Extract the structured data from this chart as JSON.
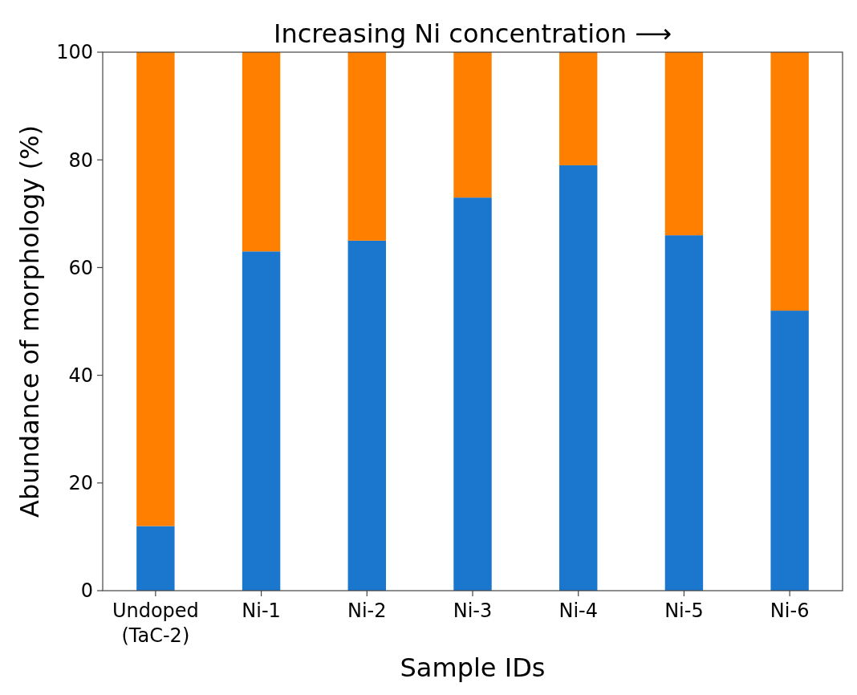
{
  "chart_data": {
    "type": "bar",
    "title": "Increasing Ni concentration ⟶",
    "xlabel": "Sample IDs",
    "ylabel": "Abundance of morphology (%)",
    "categories": [
      "Undoped\n(TaC-2)",
      "Ni-1",
      "Ni-2",
      "Ni-3",
      "Ni-4",
      "Ni-5",
      "Ni-6"
    ],
    "stacked": true,
    "series": [
      {
        "color": "#1a77cd",
        "values": [
          12,
          63,
          65,
          73,
          79,
          66,
          52
        ]
      },
      {
        "color": "#ff8000",
        "values": [
          88,
          37,
          35,
          27,
          21,
          34,
          48
        ]
      }
    ],
    "ylim": [
      0,
      100
    ],
    "yticks": [
      0,
      20,
      40,
      60,
      80,
      100
    ],
    "grid": false
  }
}
